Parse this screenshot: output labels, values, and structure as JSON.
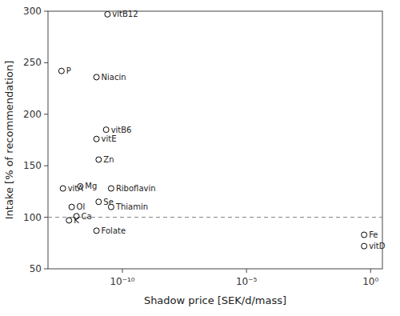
{
  "chart_data": {
    "type": "scatter",
    "x_label": "Shadow price [SEK/d/mass]",
    "y_label": "Intake [% of recommendation]",
    "labels": [
      "vitB12",
      "P",
      "Niacin",
      "vitB6",
      "vitE",
      "Zn",
      "vitA",
      "Mg",
      "Riboflavin",
      "Ol",
      "Se",
      "Thiamin",
      "Ca",
      "K",
      "Folate",
      "Fe",
      "vitD"
    ],
    "x": [
      2.5e-11,
      3.5e-13,
      9e-12,
      2.2e-11,
      9e-12,
      1.1e-11,
      4e-13,
      2e-12,
      3.5e-11,
      9e-13,
      1.1e-11,
      3.5e-11,
      1.4e-12,
      7e-13,
      9e-12,
      0.55,
      0.55
    ],
    "values": [
      297,
      242,
      236,
      185,
      176,
      156,
      128,
      130,
      128,
      110,
      115,
      110,
      101,
      97,
      87,
      83,
      72
    ],
    "hline": 100,
    "log": "x",
    "xlim": [
      1e-13,
      3.0
    ],
    "ylim": [
      50,
      300
    ],
    "xticks": [
      {
        "value": 1e-10,
        "label": "10⁻¹⁰"
      },
      {
        "value": 1e-05,
        "label": "10⁻⁵"
      },
      {
        "value": 1,
        "label": "10⁰"
      }
    ],
    "yticks": [
      50,
      100,
      150,
      200,
      250,
      300
    ],
    "marker": "circle",
    "color": "#000000",
    "grid": false
  }
}
